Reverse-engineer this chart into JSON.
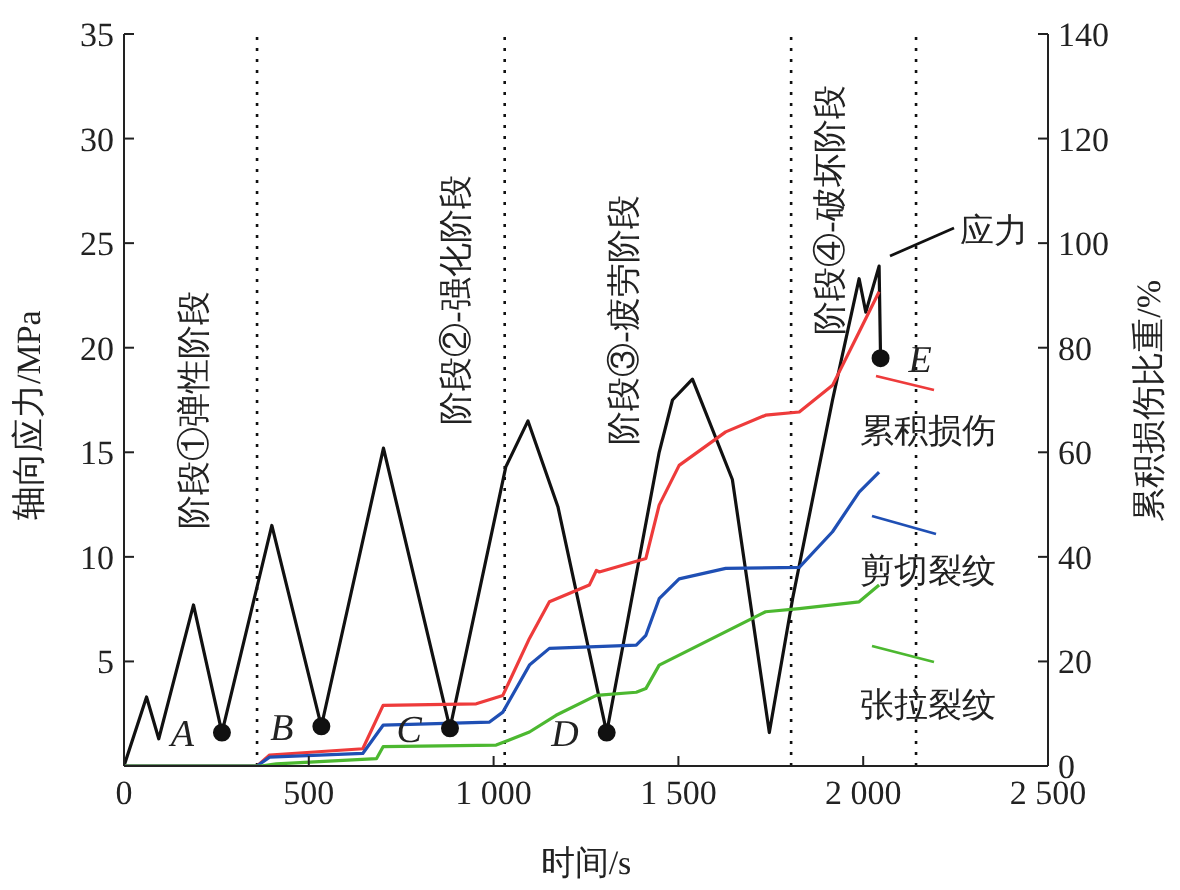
{
  "chart_data": {
    "type": "line",
    "xlabel": "时间/s",
    "ylabel": "轴向应力/MPa",
    "y2label": "累积损伤比重/%",
    "xlim": [
      0,
      2500
    ],
    "xticks": [
      0,
      500,
      {
        "value": 1000,
        "label": "1 000"
      },
      {
        "value": 1500,
        "label": "1 500"
      },
      {
        "value": 2000,
        "label": "2 000"
      },
      {
        "value": 2500,
        "label": "2 500"
      }
    ],
    "ylim": [
      0,
      35
    ],
    "yticks": [
      {
        "value": 0,
        "label": null
      },
      5,
      10,
      15,
      20,
      25,
      30,
      35
    ],
    "y2lim": [
      0,
      140
    ],
    "y2ticks": [
      0,
      20,
      40,
      60,
      80,
      100,
      120,
      140
    ],
    "legend": "right",
    "series": [
      {
        "name": "应力",
        "color": "#111111",
        "x": [
          0,
          61,
          94,
          188,
          265,
          400,
          534,
          702,
          882,
          1033,
          1093,
          1174,
          1306,
          1448,
          1484,
          1538,
          1646,
          1746,
          1809,
          1917,
          1989,
          2007,
          2043,
          2047
        ],
        "values": [
          0,
          3.3,
          1.3,
          7.7,
          1.6,
          11.5,
          1.9,
          15.2,
          1.8,
          14.3,
          16.5,
          12.4,
          1.6,
          15.0,
          17.5,
          18.5,
          13.7,
          1.6,
          8.0,
          17.5,
          23.3,
          21.7,
          23.9,
          19.5
        ]
      },
      {
        "name": "累积损伤",
        "color": "#ee3b3b",
        "axis": "y2",
        "x": [
          0,
          360,
          394,
          646,
          701,
          953,
          1025,
          1097,
          1151,
          1259,
          1278,
          1286,
          1412,
          1448,
          1502,
          1628,
          1736,
          1827,
          1917,
          1989,
          2043
        ],
        "values": [
          0,
          0,
          2.1,
          3.3,
          11.6,
          11.9,
          13.5,
          24.4,
          31.4,
          34.6,
          37.4,
          37.1,
          39.7,
          49.9,
          57.5,
          63.9,
          67.1,
          67.7,
          72.8,
          83.0,
          90.7
        ]
      },
      {
        "name": "剪切裂纹",
        "color": "#1f4fb4",
        "axis": "y2",
        "x": [
          0,
          360,
          394,
          646,
          701,
          989,
          1025,
          1097,
          1151,
          1386,
          1412,
          1448,
          1502,
          1628,
          1827,
          1917,
          1989,
          2043
        ],
        "values": [
          0,
          0,
          1.7,
          2.4,
          7.8,
          8.4,
          10.3,
          19.3,
          22.5,
          23.1,
          25.0,
          32.0,
          35.8,
          37.8,
          38.0,
          44.8,
          52.4,
          56.2
        ]
      },
      {
        "name": "张拉裂纹",
        "color": "#4cb830",
        "axis": "y2",
        "x": [
          0,
          370,
          412,
          683,
          701,
          1007,
          1097,
          1169,
          1278,
          1386,
          1412,
          1448,
          1502,
          1736,
          1827,
          1989,
          2043
        ],
        "values": [
          0,
          0,
          0.4,
          1.4,
          3.7,
          4.0,
          6.5,
          9.7,
          13.5,
          14.1,
          14.8,
          19.3,
          21.2,
          29.5,
          30.1,
          31.4,
          34.6
        ]
      }
    ],
    "ref_lines": [
      {
        "axis": "x",
        "value": 360,
        "line_style": "dotted",
        "color": "#111111"
      },
      {
        "axis": "x",
        "value": 1030,
        "line_style": "dotted",
        "color": "#111111"
      },
      {
        "axis": "x",
        "value": 1805,
        "line_style": "dotted",
        "color": "#111111"
      },
      {
        "axis": "x",
        "value": 2143,
        "line_style": "dotted",
        "color": "#111111"
      }
    ],
    "annotations": [
      "阶段①弹性阶段",
      "阶段②-强化阶段",
      "阶段③-疲劳阶段",
      "阶段④-破坏阶段",
      {
        "text": "A",
        "x": 265,
        "y": 1.6
      },
      {
        "text": "B",
        "x": 534,
        "y": 1.9
      },
      {
        "text": "C",
        "x": 882,
        "y": 1.8
      },
      {
        "text": "D",
        "x": 1306,
        "y": 1.6
      },
      {
        "text": "E",
        "x": 2047,
        "y": 19.5
      }
    ]
  }
}
